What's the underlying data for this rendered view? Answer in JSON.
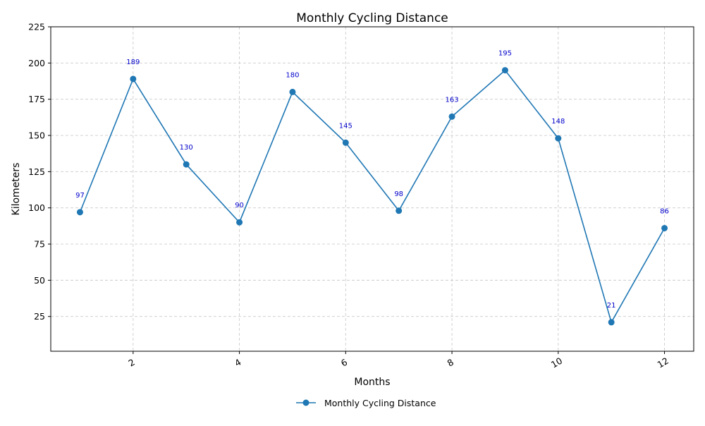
{
  "chart_data": {
    "type": "line",
    "title": "Monthly Cycling Distance",
    "xlabel": "Months",
    "ylabel": "Kilometers",
    "xlim": [
      0.45,
      12.55
    ],
    "ylim": [
      1,
      225
    ],
    "xticks": [
      2,
      4,
      6,
      8,
      10,
      12
    ],
    "yticks": [
      25,
      50,
      75,
      100,
      125,
      150,
      175,
      200,
      225
    ],
    "grid": true,
    "legend_position": "bottom-center",
    "x": [
      1,
      2,
      3,
      4,
      5,
      6,
      7,
      8,
      9,
      10,
      11,
      12
    ],
    "series": [
      {
        "name": "Monthly Cycling Distance",
        "values": [
          97,
          189,
          130,
          90,
          180,
          145,
          98,
          163,
          195,
          148,
          21,
          86
        ],
        "color": "#1f77b4"
      }
    ],
    "data_labels": [
      "97",
      "189",
      "130",
      "90",
      "180",
      "145",
      "98",
      "163",
      "195",
      "148",
      "21",
      "86"
    ],
    "data_label_color": "#0000cc"
  }
}
